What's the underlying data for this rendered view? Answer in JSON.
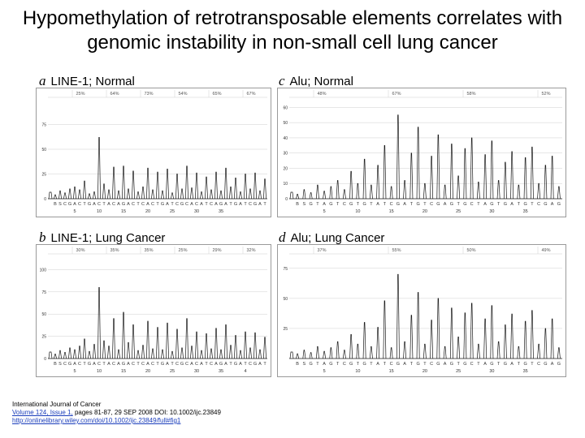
{
  "title": {
    "line1": "Hypomethylation of retrotransposable elements correlates with",
    "line2": "genomic instability in non-small cell lung cancer"
  },
  "colors": {
    "trace": "#1a1a1a",
    "grid": "#cfcfcf",
    "frame": "#9a9a9a",
    "link": "#1a3dbb"
  },
  "chart_data": [
    {
      "type": "line",
      "panel": "a",
      "title": "LINE-1; Normal",
      "y_ticks": [
        "0",
        "25",
        "50",
        "75"
      ],
      "ylim": [
        0,
        100
      ],
      "percent_labels": [
        "25%",
        "64%",
        "73%",
        "54%",
        "65%",
        "67%"
      ],
      "sequence": [
        "B",
        "S",
        "C",
        "G",
        "A",
        "C",
        "T",
        "G",
        "A",
        "C",
        "T",
        "A",
        "C",
        "A",
        "G",
        "A",
        "C",
        "T",
        "C",
        "A",
        "C",
        "T",
        "G",
        "A",
        "T",
        "C",
        "G",
        "C",
        "A",
        "C",
        "A",
        "T",
        "C",
        "A",
        "G",
        "A",
        "T",
        "G",
        "A",
        "T",
        "C",
        "G",
        "A",
        "T"
      ],
      "position_labels": [
        "5",
        "10",
        "15",
        "20",
        "25",
        "30",
        "35"
      ],
      "peaks": [
        4,
        8,
        6,
        10,
        12,
        9,
        18,
        5,
        7,
        62,
        15,
        9,
        32,
        8,
        33,
        10,
        28,
        7,
        12,
        31,
        9,
        27,
        8,
        30,
        6,
        25,
        10,
        33,
        11,
        26,
        7,
        22,
        9,
        27,
        8,
        31,
        12,
        21,
        7,
        25,
        10,
        26,
        8,
        20
      ]
    },
    {
      "type": "line",
      "panel": "b",
      "title": "LINE-1; Lung Cancer",
      "y_ticks": [
        "0",
        "25",
        "50",
        "75",
        "100"
      ],
      "ylim": [
        0,
        115
      ],
      "percent_labels": [
        "30%",
        "35%",
        "35%",
        "25%",
        "29%",
        "32%"
      ],
      "sequence": [
        "B",
        "S",
        "C",
        "G",
        "A",
        "C",
        "T",
        "G",
        "A",
        "C",
        "T",
        "A",
        "C",
        "A",
        "G",
        "A",
        "C",
        "T",
        "C",
        "A",
        "C",
        "T",
        "G",
        "A",
        "T",
        "C",
        "G",
        "C",
        "A",
        "C",
        "A",
        "T",
        "C",
        "A",
        "G",
        "A",
        "T",
        "G",
        "A",
        "T",
        "C",
        "G",
        "A",
        "T"
      ],
      "position_labels": [
        "5",
        "10",
        "15",
        "20",
        "25",
        "30",
        "35",
        "4"
      ],
      "peaks": [
        5,
        9,
        7,
        12,
        10,
        14,
        22,
        8,
        16,
        80,
        20,
        14,
        45,
        10,
        52,
        18,
        38,
        9,
        15,
        42,
        11,
        35,
        10,
        40,
        8,
        33,
        12,
        45,
        14,
        30,
        9,
        28,
        11,
        34,
        10,
        38,
        15,
        26,
        9,
        30,
        12,
        29,
        10,
        24
      ]
    },
    {
      "type": "line",
      "panel": "c",
      "title": "Alu; Normal",
      "y_ticks": [
        "0",
        "10",
        "20",
        "30",
        "40",
        "50",
        "60"
      ],
      "ylim": [
        0,
        65
      ],
      "percent_labels": [
        "48%",
        "67%",
        "58%",
        "52%"
      ],
      "sequence": [
        "B",
        "S",
        "G",
        "T",
        "A",
        "G",
        "T",
        "C",
        "G",
        "T",
        "G",
        "T",
        "A",
        "T",
        "C",
        "G",
        "A",
        "T",
        "G",
        "T",
        "C",
        "G",
        "A",
        "G",
        "T",
        "G",
        "C",
        "T",
        "A",
        "G",
        "T",
        "G",
        "A",
        "T",
        "G",
        "T",
        "C",
        "G",
        "A",
        "G"
      ],
      "position_labels": [
        "5",
        "10",
        "15",
        "20",
        "25",
        "30",
        "35"
      ],
      "peaks": [
        3,
        6,
        4,
        9,
        5,
        8,
        12,
        6,
        18,
        10,
        26,
        9,
        22,
        35,
        8,
        55,
        12,
        30,
        47,
        10,
        28,
        42,
        9,
        36,
        15,
        33,
        40,
        11,
        29,
        38,
        12,
        24,
        31,
        9,
        27,
        34,
        10,
        22,
        28,
        8
      ]
    },
    {
      "type": "line",
      "panel": "d",
      "title": "Alu; Lung Cancer",
      "y_ticks": [
        "25",
        "50",
        "75"
      ],
      "ylim": [
        0,
        85
      ],
      "percent_labels": [
        "37%",
        "55%",
        "50%",
        "49%"
      ],
      "sequence": [
        "B",
        "S",
        "G",
        "T",
        "A",
        "G",
        "T",
        "C",
        "G",
        "T",
        "G",
        "T",
        "A",
        "T",
        "C",
        "G",
        "A",
        "T",
        "G",
        "T",
        "C",
        "G",
        "A",
        "G",
        "T",
        "G",
        "C",
        "T",
        "A",
        "G",
        "T",
        "G",
        "A",
        "T",
        "G",
        "T",
        "C",
        "G",
        "A",
        "G"
      ],
      "position_labels": [
        "5",
        "10",
        "15",
        "20",
        "25",
        "30",
        "35"
      ],
      "peaks": [
        4,
        7,
        5,
        10,
        6,
        9,
        14,
        7,
        20,
        12,
        30,
        10,
        26,
        48,
        9,
        70,
        14,
        36,
        55,
        12,
        32,
        50,
        10,
        42,
        18,
        38,
        46,
        12,
        33,
        44,
        14,
        28,
        37,
        10,
        31,
        40,
        12,
        25,
        33,
        9
      ]
    }
  ],
  "citation": {
    "journal": "International Journal of Cancer",
    "volume_link": "Volume 124, Issue 1,",
    "pages": " pages 81-87, 29 SEP 2008 DOI: 10.1002/ijc.23849",
    "url": "http://onlinelibrary.wiley.com/doi/10.1002/ijc.23849/full#fig1"
  }
}
